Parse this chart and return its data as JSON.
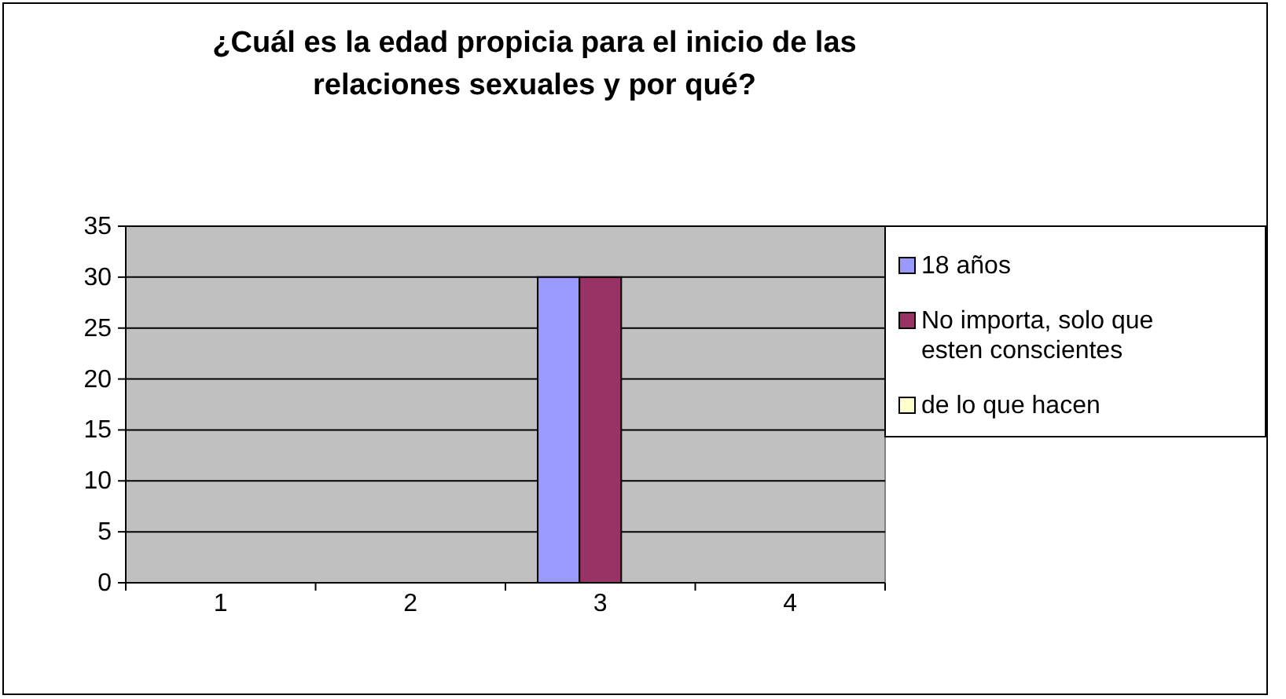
{
  "chart_data": {
    "type": "bar",
    "title": "¿Cuál es la edad propicia para el inicio de las relaciones sexuales y por qué?",
    "categories": [
      "1",
      "2",
      "3",
      "4"
    ],
    "series": [
      {
        "name": "18 años",
        "color": "#9999ff",
        "values": [
          null,
          null,
          30,
          null
        ]
      },
      {
        "name": "No importa, solo que esten conscientes",
        "color": "#993366",
        "values": [
          null,
          null,
          30,
          null
        ]
      },
      {
        "name": "de lo que hacen",
        "color": "#ffffcc",
        "values": [
          null,
          null,
          null,
          null
        ]
      }
    ],
    "ylim": [
      0,
      35
    ],
    "yticks": [
      0,
      5,
      10,
      15,
      20,
      25,
      30,
      35
    ],
    "grid": "y",
    "legend": "right"
  }
}
